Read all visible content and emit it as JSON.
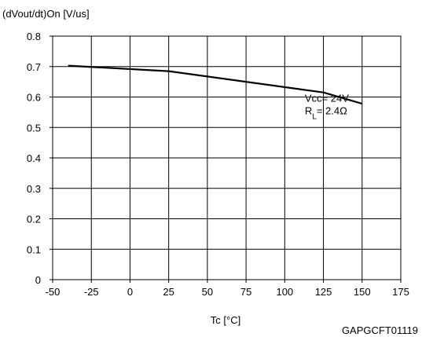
{
  "chart_data": {
    "type": "line",
    "ylabel": "(dVout/dt)On [V/us]",
    "xlabel": "Tc [°C]",
    "code": "GAPGCFT01119",
    "xlim": [
      -50,
      175
    ],
    "ylim": [
      0,
      0.8
    ],
    "x_ticks": [
      -50,
      -25,
      0,
      25,
      50,
      75,
      100,
      125,
      150,
      175
    ],
    "x_tick_labels": [
      "-50",
      "-25",
      "0",
      "25",
      "50",
      "75",
      "100",
      "125",
      "150",
      "175"
    ],
    "y_ticks": [
      0,
      0.1,
      0.2,
      0.3,
      0.4,
      0.5,
      0.6,
      0.7,
      0.8
    ],
    "y_tick_labels": [
      "0",
      "0.1",
      "0.2",
      "0.3",
      "0.4",
      "0.5",
      "0.6",
      "0.7",
      "0.8"
    ],
    "grid": true,
    "series": [
      {
        "x": [
          -40,
          25,
          125,
          150
        ],
        "y": [
          0.703,
          0.685,
          0.615,
          0.578
        ]
      }
    ],
    "annotation": {
      "vcc_label": "Vcc= 24V",
      "rl_main": "R",
      "rl_sub": "L",
      "rl_value": "= 2.4Ω",
      "x": 113,
      "y": 0.585
    }
  }
}
